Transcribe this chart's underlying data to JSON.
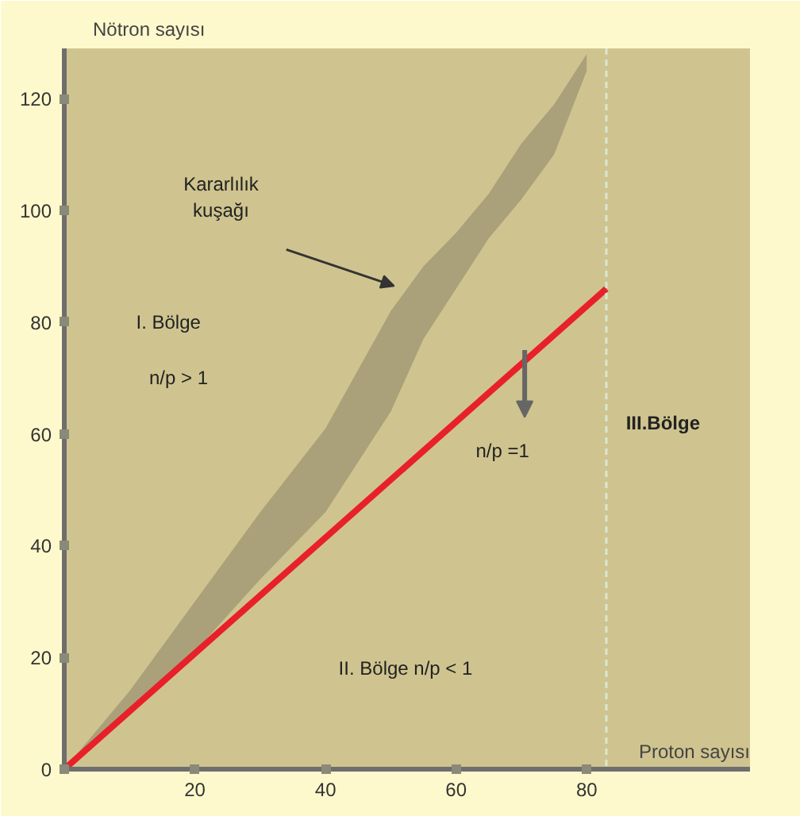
{
  "chart_data": {
    "type": "line",
    "xlabel": "Proton sayısı",
    "ylabel": "Nötron sayısı",
    "xlim": [
      0,
      105
    ],
    "ylim": [
      0,
      129
    ],
    "xticks": [
      20,
      40,
      60,
      80
    ],
    "yticks": [
      0,
      20,
      40,
      60,
      80,
      100,
      120
    ],
    "grid": false,
    "marker": "none",
    "series": [
      {
        "color": "#a59d78",
        "x": [
          0,
          10,
          20,
          30,
          40,
          50,
          55,
          60,
          65,
          70,
          75,
          80
        ],
        "values": [
          null,
          null,
          null,
          null,
          null,
          null,
          null,
          null,
          null,
          null,
          null,
          null
        ],
        "upper": [
          0,
          14,
          30,
          46,
          61,
          82,
          90,
          96,
          103,
          112,
          119,
          128
        ],
        "lower": [
          0,
          10,
          21,
          34,
          46,
          64,
          77,
          86,
          95,
          102,
          110,
          125
        ]
      },
      {
        "color": "#e8202a",
        "x": [
          0,
          83
        ],
        "values": [
          0,
          86
        ]
      }
    ],
    "ref_lines": [
      {
        "axis": "x",
        "value": 83,
        "color": "#d8e8d0",
        "line_style": "dashed"
      }
    ],
    "annotations": [
      "Kararlılık kuşağı",
      "I. Bölge",
      "n/p > 1",
      "II. Bölge n/p < 1",
      "n/p =1",
      "III.Bölge"
    ]
  }
}
